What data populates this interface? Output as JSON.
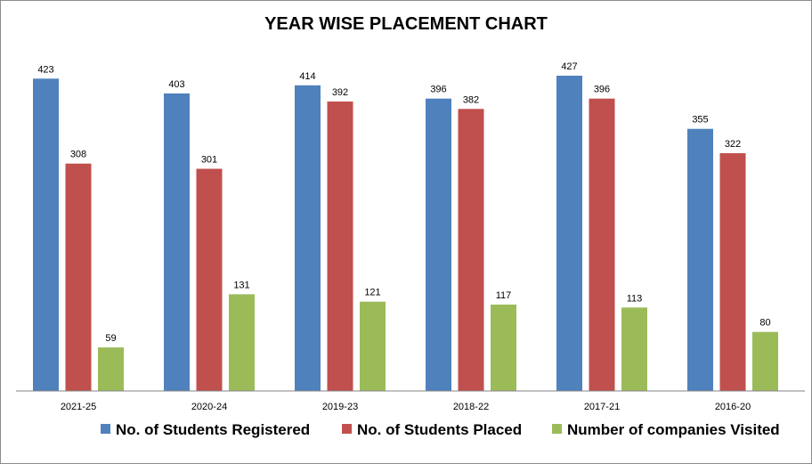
{
  "chart_data": {
    "type": "bar",
    "title": "YEAR WISE PLACEMENT CHART",
    "xlabel": "",
    "ylabel": "",
    "ylim": [
      0,
      450
    ],
    "grid": false,
    "legend_position": "bottom",
    "categories": [
      "2021-25",
      "2020-24",
      "2019-23",
      "2018-22",
      "2017-21",
      "2016-20"
    ],
    "series": [
      {
        "name": "No. of Students Registered",
        "color": "#4f81bd",
        "values": [
          423,
          403,
          414,
          396,
          427,
          355
        ]
      },
      {
        "name": "No. of Students Placed",
        "color": "#c0504d",
        "values": [
          308,
          301,
          392,
          382,
          396,
          322
        ]
      },
      {
        "name": "Number of companies Visited",
        "color": "#9bbb59",
        "values": [
          59,
          131,
          121,
          117,
          113,
          80
        ]
      }
    ]
  }
}
